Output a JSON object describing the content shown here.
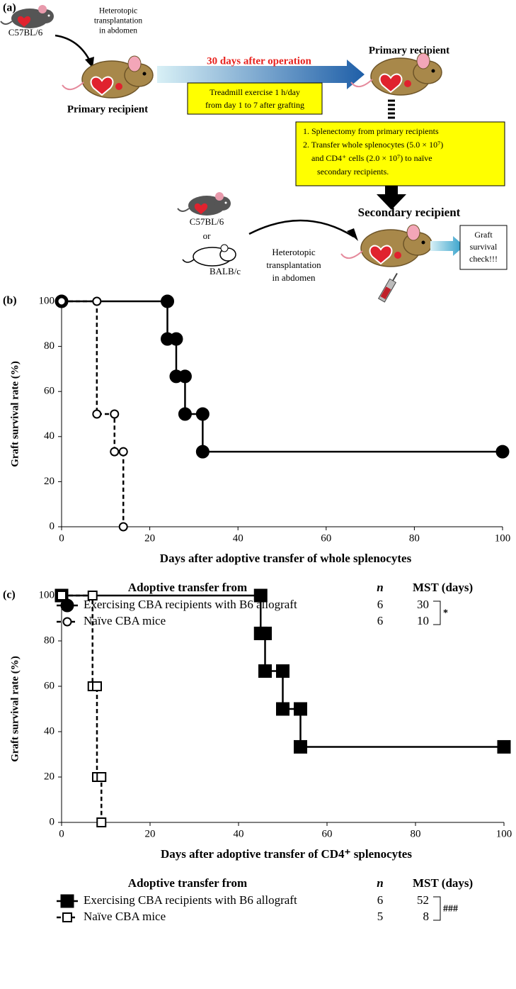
{
  "panel_a": {
    "label": "(a)",
    "donor_strain": "C57BL/6",
    "transplant_note": [
      "Heterotopic",
      "transplantation",
      "in abdomen"
    ],
    "primary_recipient_left": "Primary recipient",
    "arrow_label": "30 days after operation",
    "exercise_box": [
      "Treadmill exercise 1 h/day",
      "from day 1 to 7 after grafting"
    ],
    "primary_recipient_right": "Primary recipient",
    "transfer_box": [
      "1. Splenectomy from primary recipients",
      "2. Transfer whole splenocytes (5.0 × 10⁷)",
      "and CD4⁺ cells (2.0 × 10⁷) to naïve",
      "secondary recipients."
    ],
    "secondary_recipient": "Secondary recipient",
    "donor_options": [
      "C57BL/6",
      "or",
      "BALB/c"
    ],
    "transplant_note_2": [
      "Heterotopic",
      "transplantation",
      "in abdomen"
    ],
    "check_box": [
      "Graft",
      "survival",
      "check!!!"
    ]
  },
  "chart_data": [
    {
      "type": "line",
      "panel_label": "(b)",
      "y_label": "Graft survival rate (%)",
      "x_label": "Days after adoptive transfer of whole splenocytes",
      "xlim": [
        0,
        100
      ],
      "xticks": [
        0,
        20,
        40,
        60,
        80,
        100
      ],
      "ylim": [
        0,
        100
      ],
      "yticks": [
        0,
        20,
        40,
        60,
        80,
        100
      ],
      "legend_title": "Adoptive transfer from",
      "n_header": "n",
      "mst_header": "MST (days)",
      "significance": "*",
      "series": [
        {
          "name": "Exercising CBA recipients with B6 allograft",
          "color": "#000000",
          "marker": "circle",
          "fill": "filled",
          "linestyle": "solid",
          "x": [
            0,
            24,
            24,
            26,
            26,
            28,
            28,
            32,
            32,
            100
          ],
          "values": [
            100,
            100,
            83.3,
            83.3,
            66.7,
            66.7,
            50,
            50,
            33.3,
            33.3
          ],
          "n": 6,
          "mst": 30
        },
        {
          "name": "Naïve CBA mice",
          "color": "#000000",
          "marker": "circle",
          "fill": "open",
          "linestyle": "dashed",
          "x": [
            0,
            8,
            8,
            12,
            12,
            14,
            14
          ],
          "values": [
            100,
            100,
            50,
            50,
            33.3,
            33.3,
            0
          ],
          "n": 6,
          "mst": 10
        }
      ]
    },
    {
      "type": "line",
      "panel_label": "(c)",
      "y_label": "Graft survival rate (%)",
      "x_label": "Days after adoptive transfer of CD4⁺ splenocytes",
      "xlim": [
        0,
        100
      ],
      "xticks": [
        0,
        20,
        40,
        60,
        80,
        100
      ],
      "ylim": [
        0,
        100
      ],
      "yticks": [
        0,
        20,
        40,
        60,
        80,
        100
      ],
      "legend_title": "Adoptive transfer from",
      "n_header": "n",
      "mst_header": "MST (days)",
      "significance": "###",
      "series": [
        {
          "name": "Exercising CBA recipients with B6 allograft",
          "color": "#000000",
          "marker": "square",
          "fill": "filled",
          "linestyle": "solid",
          "x": [
            0,
            45,
            45,
            46,
            46,
            50,
            50,
            54,
            54,
            100
          ],
          "values": [
            100,
            100,
            83.3,
            83.3,
            66.7,
            66.7,
            50,
            50,
            33.3,
            33.3
          ],
          "n": 6,
          "mst": 52
        },
        {
          "name": "Naïve CBA mice",
          "color": "#000000",
          "marker": "square",
          "fill": "open",
          "linestyle": "dashed",
          "x": [
            0,
            7,
            7,
            8,
            8,
            9,
            9
          ],
          "values": [
            100,
            100,
            60,
            60,
            20,
            20,
            0
          ],
          "n": 5,
          "mst": 8
        }
      ]
    }
  ]
}
